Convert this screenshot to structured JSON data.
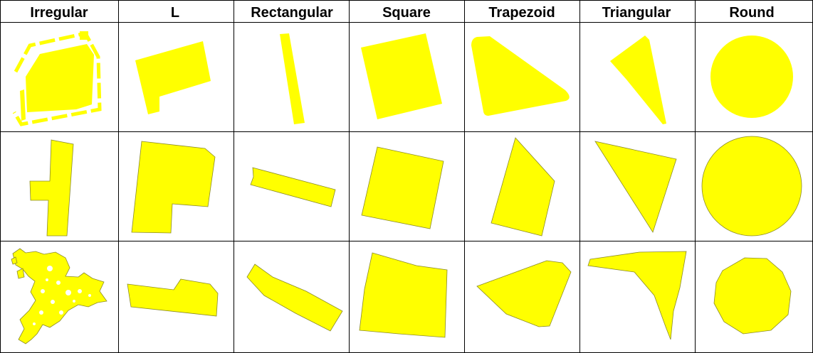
{
  "columns": [
    "Irregular",
    "L",
    "Rectangular",
    "Square",
    "Trapezoid",
    "Triangular",
    "Round"
  ],
  "colors": {
    "shape_fill": "#ffff00",
    "shape_outline": "#8a8a2a",
    "grid": "#000000",
    "background": "#ffffff"
  }
}
